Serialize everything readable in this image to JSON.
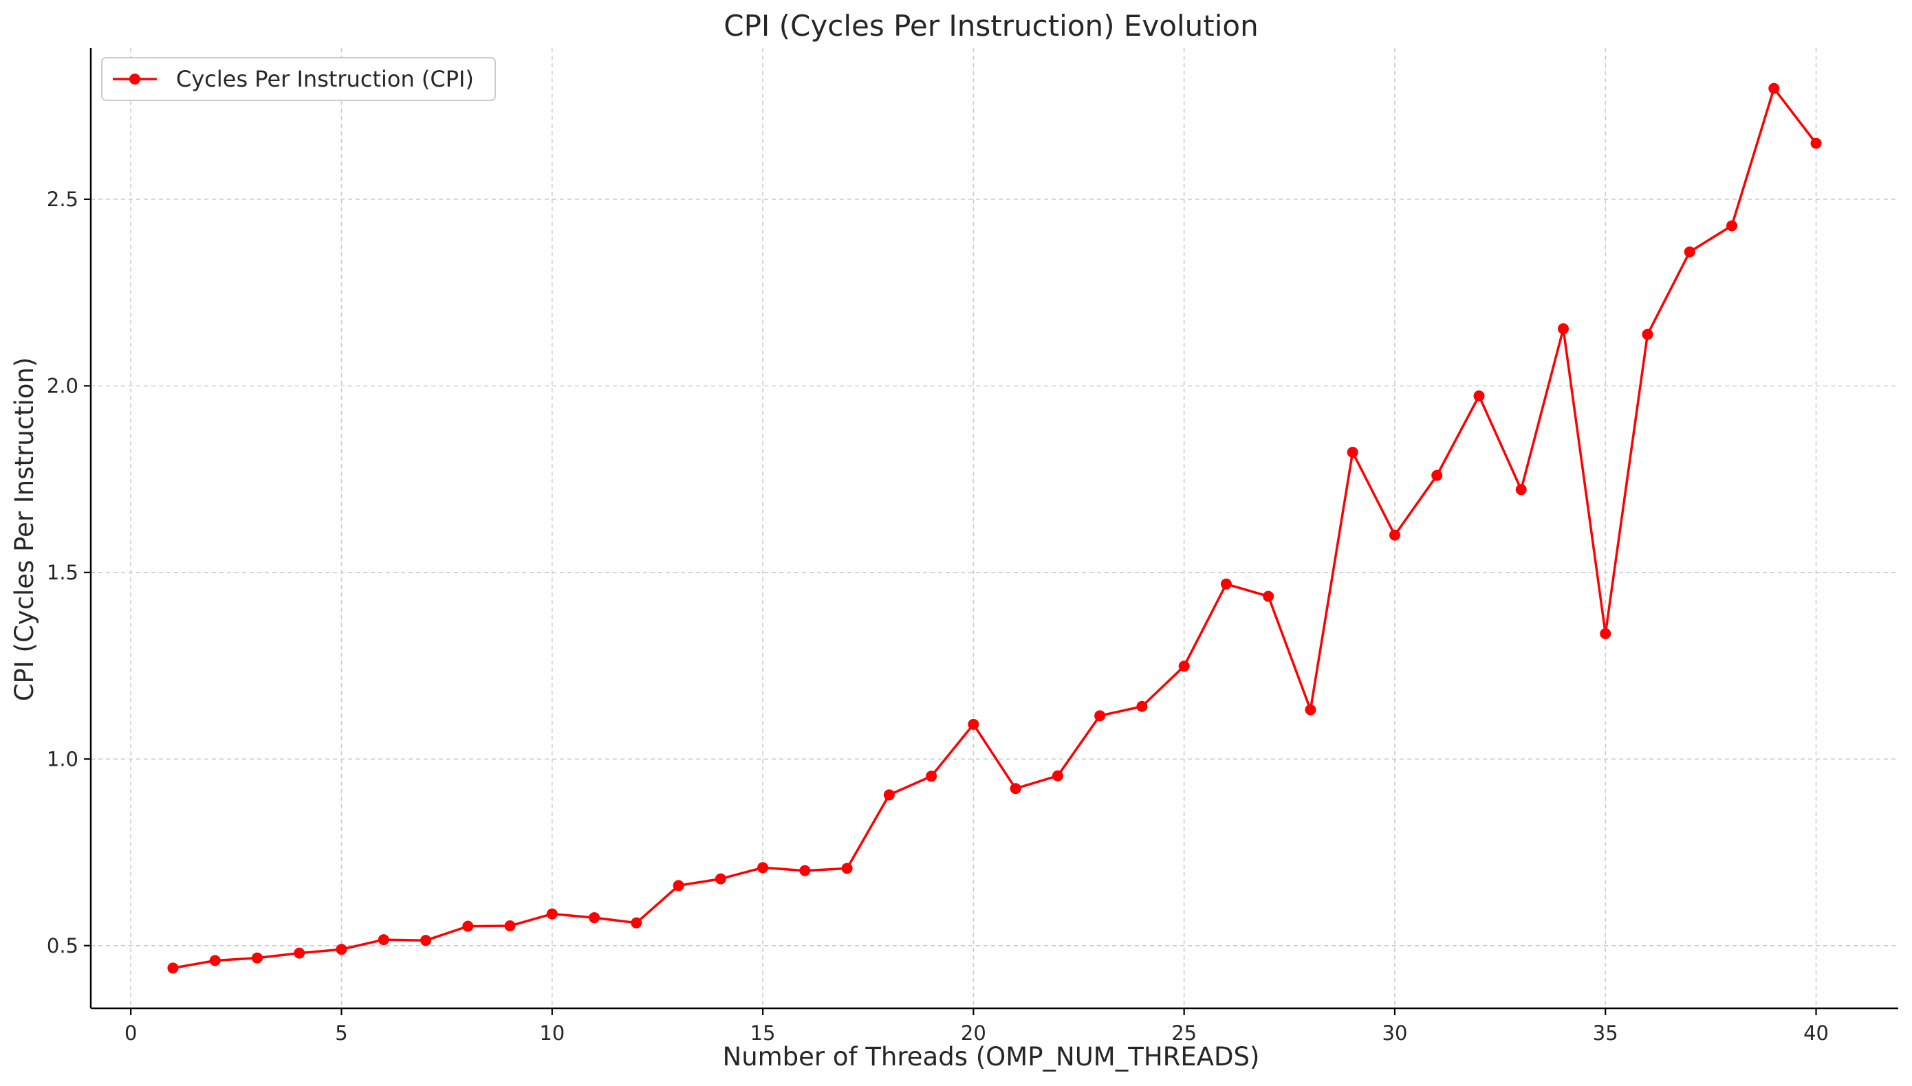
{
  "chart_data": {
    "type": "line",
    "title": "CPI (Cycles Per Instruction) Evolution",
    "xlabel": "Number of Threads (OMP_NUM_THREADS)",
    "ylabel": "CPI (Cycles Per Instruction)",
    "xlim": [
      -0.95,
      41.95
    ],
    "ylim": [
      0.332,
      2.905
    ],
    "xticks": [
      0,
      5,
      10,
      15,
      20,
      25,
      30,
      35,
      40
    ],
    "xtick_labels": [
      "0",
      "5",
      "10",
      "15",
      "20",
      "25",
      "30",
      "35",
      "40"
    ],
    "yticks": [
      0.5,
      1.0,
      1.5,
      2.0,
      2.5
    ],
    "ytick_labels": [
      "0.5",
      "1.0",
      "1.5",
      "2.0",
      "2.5"
    ],
    "grid": true,
    "legend_position": "top-left",
    "series": [
      {
        "name": "Cycles Per Instruction (CPI)",
        "color": "#ff0000",
        "marker": "circle",
        "x": [
          1,
          2,
          3,
          4,
          5,
          6,
          7,
          8,
          9,
          10,
          11,
          12,
          13,
          14,
          15,
          16,
          17,
          18,
          19,
          20,
          21,
          22,
          23,
          24,
          25,
          26,
          27,
          28,
          29,
          30,
          31,
          32,
          33,
          34,
          35,
          36,
          37,
          38,
          39,
          40
        ],
        "y": [
          0.44,
          0.46,
          0.467,
          0.48,
          0.49,
          0.516,
          0.514,
          0.552,
          0.553,
          0.585,
          0.575,
          0.561,
          0.661,
          0.679,
          0.709,
          0.701,
          0.707,
          0.904,
          0.954,
          1.093,
          0.921,
          0.955,
          1.116,
          1.141,
          1.249,
          1.469,
          1.436,
          1.132,
          1.822,
          1.6,
          1.76,
          1.973,
          1.722,
          2.153,
          1.336,
          2.138,
          2.359,
          2.429,
          2.797,
          2.65
        ]
      }
    ]
  }
}
